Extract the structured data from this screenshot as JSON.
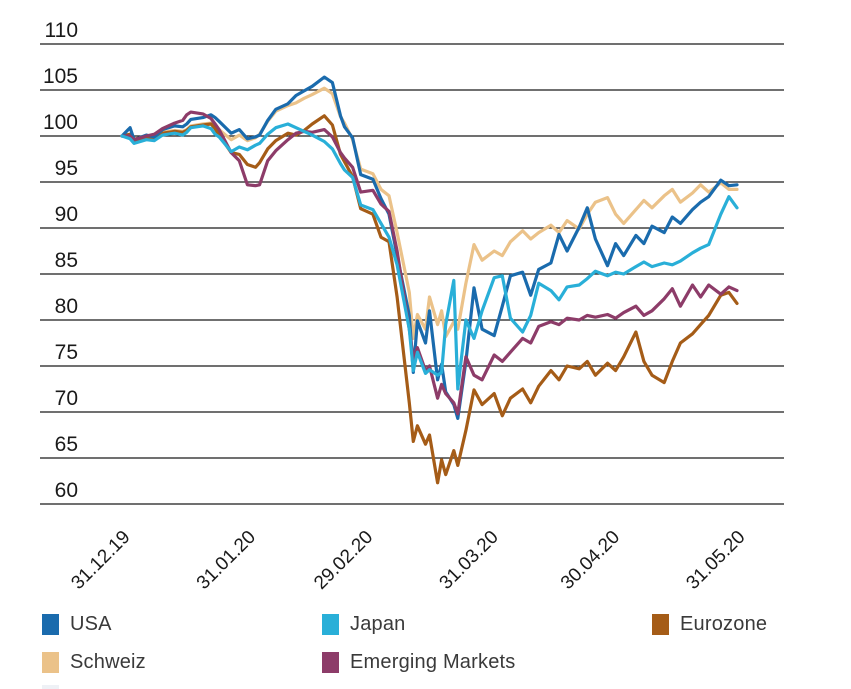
{
  "chart_data": {
    "type": "line",
    "title": "",
    "xlabel": "",
    "ylabel": "",
    "ylim": [
      60,
      110
    ],
    "grid": "horizontal",
    "legend_position": "bottom",
    "y_ticks": [
      110,
      105,
      100,
      95,
      90,
      85,
      80,
      75,
      70,
      65,
      60
    ],
    "x_tick_labels": [
      "31.12.19",
      "31.01.20",
      "29.02.20",
      "31.03.20",
      "30.04.20",
      "31.05.20"
    ],
    "x_tick_days": [
      0,
      31,
      60,
      91,
      121,
      152
    ],
    "days_since_start": [
      0,
      2,
      3,
      6,
      8,
      10,
      13,
      15,
      16,
      17,
      20,
      22,
      23,
      24,
      27,
      29,
      31,
      33,
      34,
      36,
      38,
      41,
      43,
      45,
      47,
      50,
      52,
      54,
      55,
      57,
      59,
      62,
      64,
      66,
      68,
      71,
      72,
      73,
      75,
      76,
      78,
      79,
      80,
      82,
      83,
      85,
      87,
      89,
      92,
      94,
      96,
      99,
      101,
      103,
      106,
      108,
      110,
      113,
      115,
      117,
      120,
      122,
      124,
      127,
      129,
      131,
      134,
      136,
      138,
      141,
      143,
      145,
      148,
      150,
      152
    ],
    "series": [
      {
        "name": "Schweiz",
        "color": "#ebc289",
        "values": [
          100,
          100.1,
          99.7,
          99.9,
          99.8,
          100.4,
          100.6,
          100.5,
          100.7,
          101.1,
          101.3,
          101.4,
          101.1,
          100.7,
          99.6,
          100.1,
          99.5,
          99.8,
          100.2,
          101.6,
          102.7,
          103.3,
          103.6,
          104.1,
          104.5,
          105.2,
          104.6,
          102.1,
          101.4,
          99.6,
          96.4,
          95.9,
          94.2,
          93.5,
          89.5,
          83,
          78,
          80.6,
          79,
          82.5,
          79.5,
          81,
          78.2,
          79.8,
          79,
          84,
          88.2,
          86.5,
          87.5,
          87,
          88.5,
          89.7,
          88.8,
          89.5,
          90.3,
          89.5,
          90.8,
          89.9,
          91.5,
          92.8,
          93.3,
          91.5,
          90.5,
          92,
          93,
          92.2,
          93.5,
          94.2,
          92.8,
          93.8,
          94.7,
          93.9,
          94.9,
          94.2,
          94.2
        ]
      },
      {
        "name": "Eurozone",
        "color": "#a55c17",
        "values": [
          100,
          100.2,
          99.5,
          99.8,
          99.6,
          100.3,
          100.5,
          100.4,
          100.6,
          101,
          101.2,
          101.3,
          100.8,
          100.1,
          98.2,
          98,
          96.9,
          96.6,
          97.1,
          98.6,
          99.5,
          100.3,
          100.1,
          100.6,
          101.3,
          102.2,
          101.2,
          98,
          97.2,
          95.6,
          92.1,
          91.5,
          89,
          88.5,
          82.5,
          71,
          66.8,
          68.5,
          66.5,
          67.5,
          62.3,
          64.8,
          63.2,
          65.8,
          64.2,
          68,
          72.4,
          70.8,
          72,
          69.6,
          71.5,
          72.5,
          71,
          72.8,
          74.5,
          73.5,
          75,
          74.7,
          75.5,
          74,
          75.3,
          74.5,
          76,
          78.7,
          75.5,
          74,
          73.2,
          75.5,
          77.5,
          78.5,
          79.5,
          80.5,
          82.7,
          83,
          81.8
        ]
      },
      {
        "name": "USA",
        "color": "#1a6bad",
        "values": [
          100,
          100.9,
          99.6,
          100.1,
          99.9,
          100.7,
          101.1,
          101,
          101.3,
          101.8,
          102,
          102.3,
          102,
          101.6,
          100.3,
          100.7,
          99.7,
          99.9,
          100.1,
          101.7,
          102.9,
          103.5,
          104.4,
          104.9,
          105.4,
          106.4,
          105.8,
          102.2,
          101,
          99.8,
          95.8,
          95.3,
          93.2,
          91.5,
          87,
          80.5,
          74.3,
          79.9,
          77.5,
          81,
          73.5,
          75.2,
          72.2,
          70.8,
          69.3,
          75.5,
          83.5,
          79,
          78.3,
          81.5,
          84.8,
          85.2,
          82.7,
          85.5,
          86.2,
          89.3,
          87.5,
          90.1,
          92.2,
          88.8,
          85.9,
          88.3,
          87,
          89.2,
          88.3,
          90.2,
          89.5,
          91.2,
          90.5,
          92,
          92.8,
          93.4,
          95.2,
          94.6,
          94.7
        ]
      },
      {
        "name": "Emerging Markets",
        "color": "#8d3c69",
        "values": [
          100,
          100,
          99.6,
          100,
          100.2,
          100.8,
          101.4,
          101.7,
          102.3,
          102.6,
          102.4,
          101.9,
          101.3,
          100.7,
          98.2,
          97.3,
          94.7,
          94.6,
          94.7,
          97.3,
          98.4,
          99.6,
          100.3,
          100.5,
          100.4,
          100.7,
          99.9,
          98.2,
          97.6,
          96.6,
          93.9,
          94.1,
          92.6,
          91.8,
          87.5,
          79,
          75.8,
          77,
          74.5,
          75,
          71.5,
          73,
          72,
          71,
          69.8,
          76,
          74,
          73.5,
          76.2,
          75.5,
          76.5,
          78,
          77.5,
          79.3,
          79.8,
          79.5,
          80.2,
          80,
          80.5,
          80.3,
          80.6,
          80.2,
          80.8,
          81.5,
          80.5,
          81,
          82.3,
          83.4,
          81.5,
          83.8,
          82.5,
          83.8,
          82.8,
          83.6,
          83.2
        ]
      },
      {
        "name": "Japan",
        "color": "#29afd8",
        "values": [
          100,
          99.7,
          99.2,
          99.6,
          99.5,
          100.1,
          100.3,
          100.1,
          100.4,
          100.9,
          101.1,
          100.8,
          100.2,
          99.9,
          98.3,
          98.8,
          98.5,
          99,
          99.2,
          100.2,
          100.9,
          101.3,
          100.9,
          100.5,
          100.1,
          99.4,
          98.6,
          97,
          96.3,
          95.5,
          92.5,
          92,
          90.5,
          89,
          86,
          79,
          74.5,
          76.5,
          74.2,
          74.6,
          74,
          74.3,
          79.5,
          84.3,
          72.5,
          80,
          78,
          81,
          84.6,
          84.8,
          80.2,
          78.7,
          80.5,
          84,
          83.2,
          82.2,
          83.6,
          83.8,
          84.5,
          85.3,
          84.8,
          85.2,
          85,
          85.8,
          86.3,
          85.8,
          86.2,
          86,
          86.4,
          87.3,
          87.8,
          88.2,
          91.5,
          93.4,
          92.2
        ]
      }
    ],
    "axis_color": "#1a1a1a"
  },
  "legend": {
    "rows": [
      [
        "USA",
        "Japan",
        "Eurozone"
      ],
      [
        "Schweiz",
        "Emerging Markets"
      ]
    ]
  }
}
